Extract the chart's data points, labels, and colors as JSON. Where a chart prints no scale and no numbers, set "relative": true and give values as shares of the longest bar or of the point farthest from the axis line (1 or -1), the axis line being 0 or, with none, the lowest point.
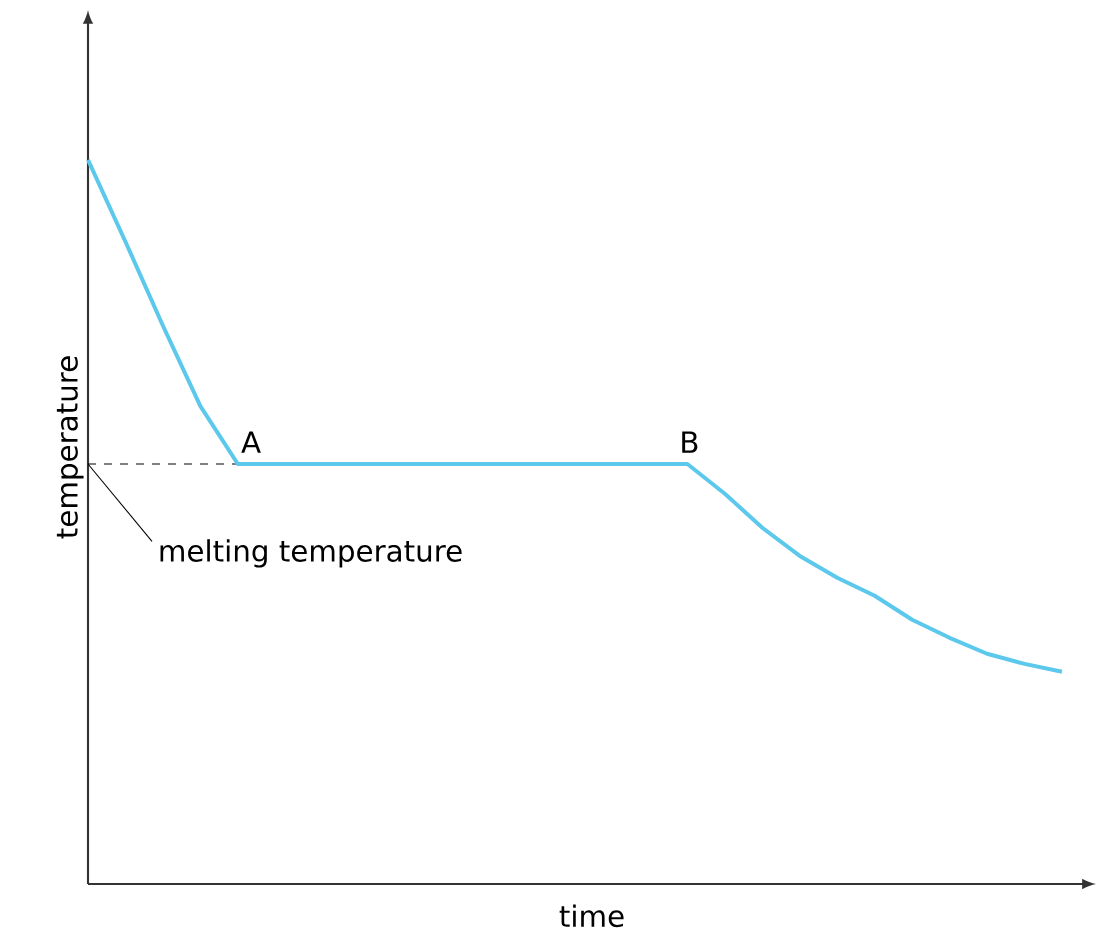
{
  "chart_data": {
    "type": "line",
    "relative": true,
    "xlabel": "time",
    "ylabel": "temperature",
    "categories": [
      null,
      null,
      null,
      null,
      null,
      null,
      null,
      null,
      null,
      null,
      null,
      null,
      null,
      null,
      null,
      null,
      null,
      null,
      null,
      null,
      null,
      null,
      null,
      null,
      null,
      null,
      null
    ],
    "series": [
      {
        "color": "#5bc8ec",
        "values": [
          1,
          0.887,
          0.771,
          0.66,
          0.58,
          0.58,
          0.58,
          0.58,
          0.58,
          0.58,
          0.58,
          0.58,
          0.58,
          0.58,
          0.58,
          0.58,
          0.58,
          0.539,
          0.492,
          0.453,
          0.423,
          0.398,
          0.365,
          0.34,
          0.318,
          0.304,
          0.293
        ]
      }
    ],
    "ref_lines": [
      {
        "axis": "y",
        "value": 0.58,
        "label": "melting temperature",
        "color": "#000000",
        "line_style": "dashed"
      }
    ],
    "annotations": [
      {
        "text": "A",
        "y": 0.58
      },
      {
        "text": "B",
        "y": 0.58
      }
    ]
  }
}
